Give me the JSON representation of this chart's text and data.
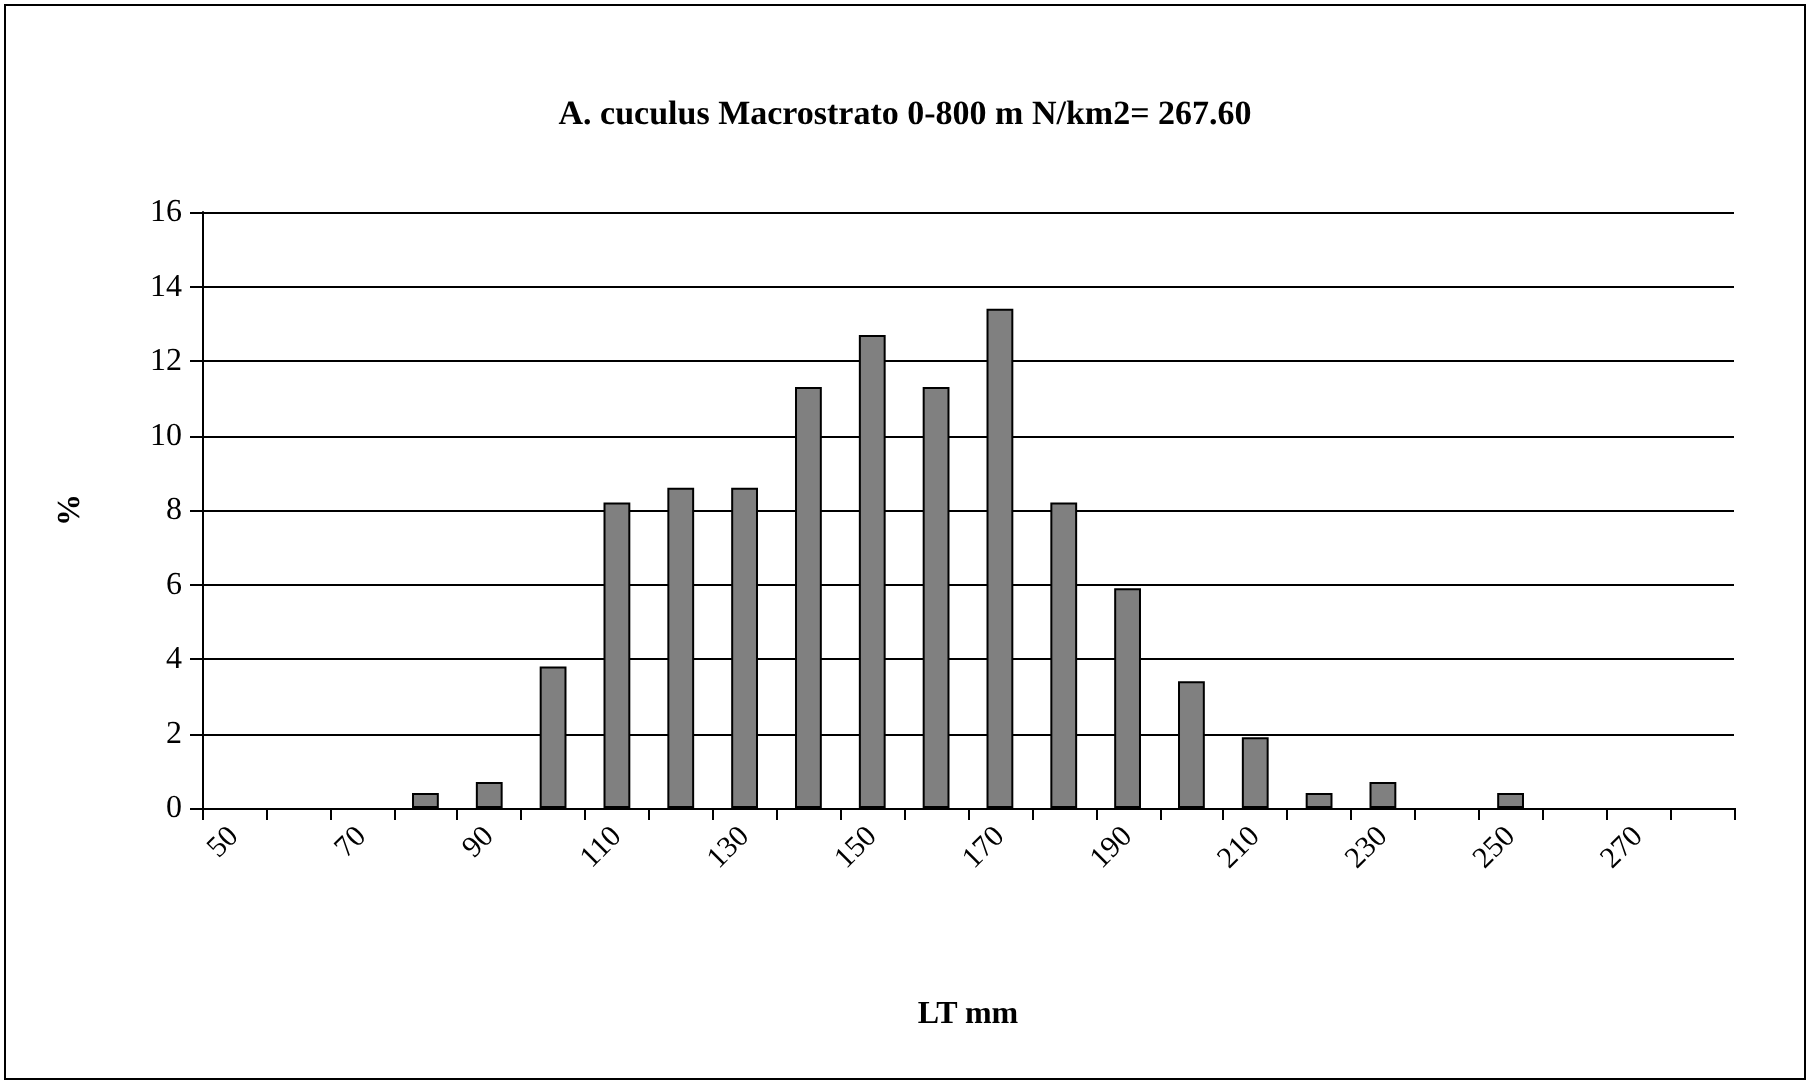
{
  "chart_data": {
    "type": "bar",
    "title": "A. cuculus Macrostrato 0-800 m N/km2= 267.60",
    "xlabel": "LT mm",
    "ylabel": "%",
    "categories": [
      "50",
      null,
      "70",
      null,
      "90",
      null,
      "110",
      null,
      "130",
      null,
      "150",
      null,
      "170",
      null,
      "190",
      null,
      "210",
      null,
      "230",
      null,
      "250",
      null,
      "270",
      null
    ],
    "values": [
      0,
      0,
      0,
      0.4,
      0.7,
      3.8,
      8.2,
      8.6,
      8.6,
      11.3,
      12.7,
      11.3,
      13.4,
      8.2,
      5.9,
      3.4,
      1.9,
      0.4,
      0.7,
      0,
      0.4,
      0,
      0,
      0
    ],
    "color": "#808080",
    "ylim": [
      0,
      16
    ],
    "yticks": [
      0,
      2,
      4,
      6,
      8,
      10,
      12,
      14,
      16
    ],
    "grid": "y"
  }
}
